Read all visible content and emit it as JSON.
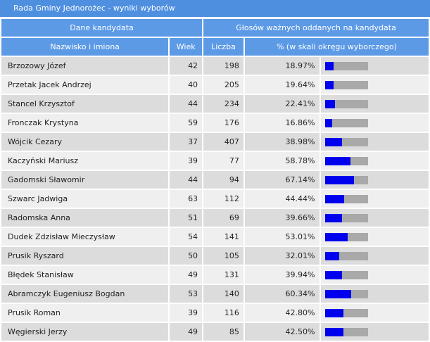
{
  "title": "Rada Gminy Jednorożec - wyniki wyborów",
  "headers": {
    "group_candidate": "Dane kandydata",
    "group_votes": "Głosów ważnych oddanych na kandydata",
    "name": "Nazwisko i imiona",
    "age": "Wiek",
    "count": "Liczba",
    "percent": "% (w skali okręgu wyborczego)"
  },
  "colors": {
    "titlebar": "#4f8fe0",
    "header": "#5d9ae6",
    "bar_fill": "#0000ee",
    "bar_track": "#a9a9a9"
  },
  "rows": [
    {
      "name": "Brzozowy Józef",
      "age": "42",
      "count": "198",
      "percent": "18.97%",
      "pct_value": 18.97
    },
    {
      "name": "Przetak Jacek Andrzej",
      "age": "40",
      "count": "205",
      "percent": "19.64%",
      "pct_value": 19.64
    },
    {
      "name": "Stancel Krzysztof",
      "age": "44",
      "count": "234",
      "percent": "22.41%",
      "pct_value": 22.41
    },
    {
      "name": "Fronczak Krystyna",
      "age": "59",
      "count": "176",
      "percent": "16.86%",
      "pct_value": 16.86
    },
    {
      "name": "Wójcik Cezary",
      "age": "37",
      "count": "407",
      "percent": "38.98%",
      "pct_value": 38.98
    },
    {
      "name": "Kaczyński Mariusz",
      "age": "39",
      "count": "77",
      "percent": "58.78%",
      "pct_value": 58.78
    },
    {
      "name": "Gadomski Sławomir",
      "age": "44",
      "count": "94",
      "percent": "67.14%",
      "pct_value": 67.14
    },
    {
      "name": "Szwarc Jadwiga",
      "age": "63",
      "count": "112",
      "percent": "44.44%",
      "pct_value": 44.44
    },
    {
      "name": "Radomska Anna",
      "age": "51",
      "count": "69",
      "percent": "39.66%",
      "pct_value": 39.66
    },
    {
      "name": "Dudek Zdzisław Mieczysław",
      "age": "54",
      "count": "141",
      "percent": "53.01%",
      "pct_value": 53.01
    },
    {
      "name": "Prusik Ryszard",
      "age": "50",
      "count": "105",
      "percent": "32.01%",
      "pct_value": 32.01
    },
    {
      "name": "Błędek Stanisław",
      "age": "49",
      "count": "131",
      "percent": "39.94%",
      "pct_value": 39.94
    },
    {
      "name": "Abramczyk Eugeniusz Bogdan",
      "age": "53",
      "count": "140",
      "percent": "60.34%",
      "pct_value": 60.34
    },
    {
      "name": "Prusik Roman",
      "age": "39",
      "count": "116",
      "percent": "42.80%",
      "pct_value": 42.8
    },
    {
      "name": "Węgierski Jerzy",
      "age": "49",
      "count": "85",
      "percent": "42.50%",
      "pct_value": 42.5
    }
  ]
}
